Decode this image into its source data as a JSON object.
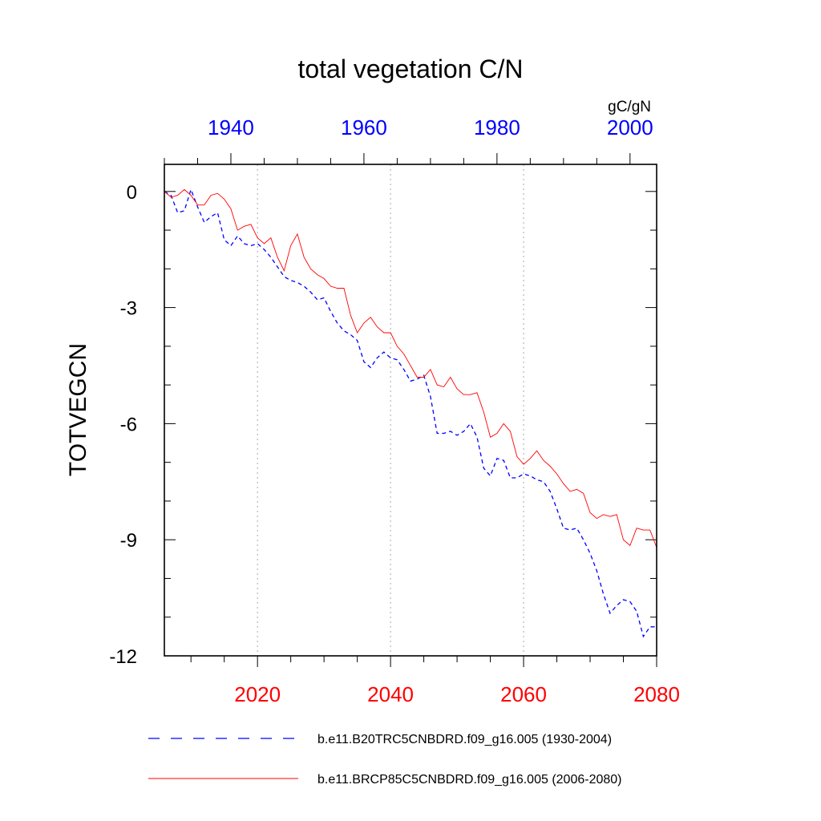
{
  "chart_data": {
    "type": "line",
    "title": "total vegetation C/N",
    "units": "gC/gN",
    "ylabel": "TOTVEGCN",
    "ylim": [
      -12,
      0.7
    ],
    "yticks": [
      0,
      -3,
      -6,
      -9,
      -12
    ],
    "bottom_axis": {
      "xlim": [
        2006,
        2080
      ],
      "ticks": [
        2020,
        2040,
        2060,
        2080
      ],
      "color": "#ff0000"
    },
    "top_axis": {
      "xlim": [
        1930,
        2004
      ],
      "ticks": [
        1940,
        1960,
        1980,
        2000
      ],
      "color": "#0000ff"
    },
    "grid": "vertical dotted at bottom-axis major ticks",
    "legend_placement": "bottom",
    "series": [
      {
        "name": "b.e11.B20TRC5CNBDRD.f09_g16.005 (1930-2004)",
        "axis": "top",
        "color": "#0000ff",
        "style": "dashed",
        "x": [
          1930,
          1931,
          1932,
          1933,
          1934,
          1935,
          1936,
          1937,
          1938,
          1939,
          1940,
          1941,
          1942,
          1943,
          1944,
          1945,
          1946,
          1947,
          1948,
          1949,
          1950,
          1951,
          1952,
          1953,
          1954,
          1955,
          1956,
          1957,
          1958,
          1959,
          1960,
          1961,
          1962,
          1963,
          1964,
          1965,
          1966,
          1967,
          1968,
          1969,
          1970,
          1971,
          1972,
          1973,
          1974,
          1975,
          1976,
          1977,
          1978,
          1979,
          1980,
          1981,
          1982,
          1983,
          1984,
          1985,
          1986,
          1987,
          1988,
          1989,
          1990,
          1991,
          1992,
          1993,
          1994,
          1995,
          1996,
          1997,
          1998,
          1999,
          2000,
          2001,
          2002,
          2003,
          2004
        ],
        "values": [
          0.0,
          -0.1,
          -0.55,
          -0.5,
          0.05,
          -0.4,
          -0.8,
          -0.65,
          -0.55,
          -1.25,
          -1.4,
          -1.15,
          -1.35,
          -1.4,
          -1.35,
          -1.5,
          -1.7,
          -1.95,
          -2.2,
          -2.3,
          -2.35,
          -2.45,
          -2.6,
          -2.8,
          -2.75,
          -3.1,
          -3.4,
          -3.6,
          -3.7,
          -3.85,
          -4.4,
          -4.55,
          -4.3,
          -4.15,
          -4.3,
          -4.35,
          -4.6,
          -4.9,
          -4.85,
          -4.75,
          -5.3,
          -6.25,
          -6.25,
          -6.2,
          -6.3,
          -6.2,
          -6.0,
          -6.35,
          -7.15,
          -7.35,
          -6.9,
          -6.95,
          -7.4,
          -7.4,
          -7.3,
          -7.35,
          -7.45,
          -7.5,
          -7.75,
          -8.2,
          -8.7,
          -8.75,
          -8.7,
          -9.0,
          -9.35,
          -9.8,
          -10.4,
          -10.9,
          -10.7,
          -10.55,
          -10.6,
          -10.85,
          -11.5,
          -11.25,
          -11.25
        ]
      },
      {
        "name": "b.e11.BRCP85C5CNBDRD.f09_g16.005 (2006-2080)",
        "axis": "bottom",
        "color": "#ff0000",
        "style": "solid",
        "x": [
          2006,
          2007,
          2008,
          2009,
          2010,
          2011,
          2012,
          2013,
          2014,
          2015,
          2016,
          2017,
          2018,
          2019,
          2020,
          2021,
          2022,
          2023,
          2024,
          2025,
          2026,
          2027,
          2028,
          2029,
          2030,
          2031,
          2032,
          2033,
          2034,
          2035,
          2036,
          2037,
          2038,
          2039,
          2040,
          2041,
          2042,
          2043,
          2044,
          2045,
          2046,
          2047,
          2048,
          2049,
          2050,
          2051,
          2052,
          2053,
          2054,
          2055,
          2056,
          2057,
          2058,
          2059,
          2060,
          2061,
          2062,
          2063,
          2064,
          2065,
          2066,
          2067,
          2068,
          2069,
          2070,
          2071,
          2072,
          2073,
          2074,
          2075,
          2076,
          2077,
          2078,
          2079,
          2080
        ],
        "values": [
          0.0,
          -0.15,
          -0.1,
          0.05,
          -0.1,
          -0.35,
          -0.35,
          -0.1,
          -0.05,
          -0.2,
          -0.45,
          -1.0,
          -0.9,
          -0.85,
          -1.2,
          -1.35,
          -1.2,
          -1.7,
          -2.05,
          -1.4,
          -1.1,
          -1.7,
          -2.0,
          -2.15,
          -2.25,
          -2.45,
          -2.5,
          -2.5,
          -3.2,
          -3.65,
          -3.4,
          -3.25,
          -3.5,
          -3.65,
          -3.65,
          -4.0,
          -4.2,
          -4.5,
          -4.8,
          -4.8,
          -4.6,
          -5.0,
          -5.05,
          -4.8,
          -5.1,
          -5.25,
          -5.25,
          -5.2,
          -5.7,
          -6.35,
          -6.25,
          -6.0,
          -6.2,
          -6.85,
          -7.05,
          -6.9,
          -6.7,
          -6.95,
          -7.1,
          -7.3,
          -7.55,
          -7.75,
          -7.7,
          -7.8,
          -8.3,
          -8.45,
          -8.35,
          -8.4,
          -8.35,
          -9.0,
          -9.15,
          -8.7,
          -8.75,
          -8.75,
          -9.2
        ]
      }
    ]
  }
}
